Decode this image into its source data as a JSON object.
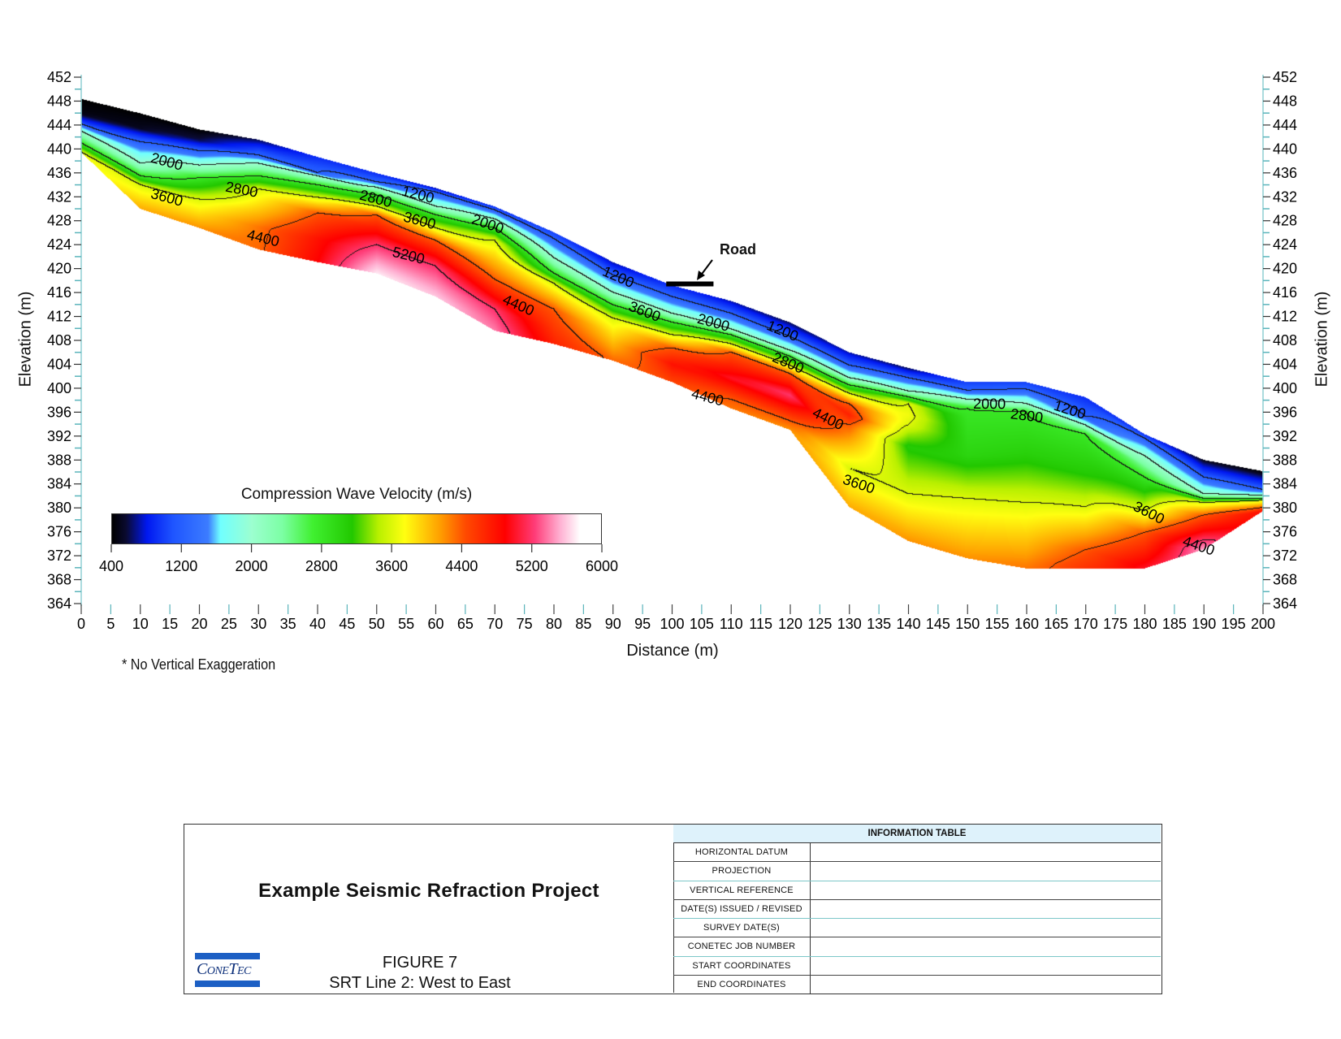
{
  "chart_data": {
    "type": "heatmap",
    "title": "",
    "xlabel": "Distance (m)",
    "ylabel": "Elevation (m)",
    "ylabel_right": "Elevation (m)",
    "xlim": [
      0,
      200
    ],
    "ylim": [
      364,
      452
    ],
    "x_ticks": [
      0,
      5,
      10,
      15,
      20,
      25,
      30,
      35,
      40,
      45,
      50,
      55,
      60,
      65,
      70,
      75,
      80,
      85,
      90,
      95,
      100,
      105,
      110,
      115,
      120,
      125,
      130,
      135,
      140,
      145,
      150,
      155,
      160,
      165,
      170,
      175,
      180,
      185,
      190,
      195,
      200
    ],
    "y_ticks": [
      452,
      448,
      444,
      440,
      436,
      432,
      428,
      424,
      420,
      416,
      412,
      408,
      404,
      400,
      396,
      392,
      388,
      384,
      380,
      376,
      372,
      368,
      364
    ],
    "note": "* No Vertical Exaggeration",
    "colorbar": {
      "title": "Compression Wave Velocity (m/s)",
      "range": [
        400,
        6000
      ],
      "ticks": [
        400,
        1200,
        2000,
        2800,
        3600,
        4400,
        5200,
        6000
      ],
      "stops": [
        [
          400,
          "#000000"
        ],
        [
          560,
          "#0a0a30"
        ],
        [
          800,
          "#0018f0"
        ],
        [
          1100,
          "#1f55ff"
        ],
        [
          1500,
          "#3c7cff"
        ],
        [
          1640,
          "#70ffff"
        ],
        [
          2000,
          "#9cffd0"
        ],
        [
          2350,
          "#7cffa4"
        ],
        [
          2700,
          "#40f030"
        ],
        [
          3150,
          "#22c800"
        ],
        [
          3450,
          "#b8f000"
        ],
        [
          3750,
          "#ffff10"
        ],
        [
          4150,
          "#ffa000"
        ],
        [
          4450,
          "#ff4a00"
        ],
        [
          4900,
          "#ff0000"
        ],
        [
          5240,
          "#ff3c78"
        ],
        [
          5530,
          "#ffb0d2"
        ],
        [
          5760,
          "#ffffff"
        ],
        [
          6000,
          "#ffffff"
        ]
      ]
    },
    "contour_levels": [
      1200,
      2000,
      2800,
      3600,
      4400,
      5200
    ],
    "columns": [
      {
        "d": 0,
        "profile": [
          [
            448.4,
            400
          ],
          [
            446,
            450
          ],
          [
            444.5,
            1000
          ],
          [
            443,
            2000
          ],
          [
            441,
            2800
          ],
          [
            439.5,
            3600
          ],
          [
            439.4,
            3700
          ]
        ]
      },
      {
        "d": 10,
        "profile": [
          [
            446,
            400
          ],
          [
            443.5,
            500
          ],
          [
            442,
            1000
          ],
          [
            440,
            1500
          ],
          [
            437.6,
            2000
          ],
          [
            435.5,
            2800
          ],
          [
            434,
            3600
          ],
          [
            430,
            4100
          ]
        ]
      },
      {
        "d": 20,
        "profile": [
          [
            443.3,
            400
          ],
          [
            441.5,
            600
          ],
          [
            440,
            1100
          ],
          [
            437.3,
            2000
          ],
          [
            435.2,
            2800
          ],
          [
            431.6,
            3600
          ],
          [
            426.8,
            4200
          ]
        ]
      },
      {
        "d": 30,
        "profile": [
          [
            441.6,
            600
          ],
          [
            440,
            1000
          ],
          [
            439,
            1200
          ],
          [
            437.6,
            2000
          ],
          [
            435.5,
            2800
          ],
          [
            433.3,
            3600
          ],
          [
            427,
            4300
          ],
          [
            423.2,
            4350
          ]
        ]
      },
      {
        "d": 40,
        "profile": [
          [
            438.7,
            900
          ],
          [
            436,
            1200
          ],
          [
            435.5,
            2000
          ],
          [
            434,
            2800
          ],
          [
            431.9,
            3600
          ],
          [
            429.3,
            4400
          ],
          [
            425,
            4800
          ],
          [
            421.1,
            4900
          ]
        ]
      },
      {
        "d": 50,
        "profile": [
          [
            436,
            900
          ],
          [
            434.5,
            1200
          ],
          [
            433.6,
            2000
          ],
          [
            432.3,
            2800
          ],
          [
            430.4,
            3600
          ],
          [
            429,
            4400
          ],
          [
            424,
            5200
          ],
          [
            419.2,
            5700
          ]
        ]
      },
      {
        "d": 60,
        "profile": [
          [
            433.5,
            700
          ],
          [
            432.8,
            1200
          ],
          [
            430.4,
            2000
          ],
          [
            429,
            2800
          ],
          [
            426.8,
            3600
          ],
          [
            424.7,
            4400
          ],
          [
            420.4,
            5200
          ],
          [
            415.3,
            5600
          ]
        ]
      },
      {
        "d": 70,
        "profile": [
          [
            430.4,
            900
          ],
          [
            429.8,
            1200
          ],
          [
            428.3,
            2000
          ],
          [
            426.8,
            2800
          ],
          [
            424.7,
            3600
          ],
          [
            418.2,
            4400
          ],
          [
            413.2,
            5200
          ],
          [
            409.6,
            5400
          ]
        ]
      },
      {
        "d": 80,
        "profile": [
          [
            426.1,
            1000
          ],
          [
            425,
            1200
          ],
          [
            421.8,
            2000
          ],
          [
            419.2,
            2800
          ],
          [
            417.5,
            3600
          ],
          [
            413.2,
            4400
          ],
          [
            407.4,
            4700
          ]
        ]
      },
      {
        "d": 90,
        "profile": [
          [
            421.1,
            700
          ],
          [
            418.9,
            1200
          ],
          [
            416,
            2000
          ],
          [
            413.9,
            2800
          ],
          [
            411.7,
            3600
          ],
          [
            404.6,
            4350
          ]
        ]
      },
      {
        "d": 100,
        "profile": [
          [
            417.2,
            900
          ],
          [
            415.3,
            1200
          ],
          [
            412.5,
            2000
          ],
          [
            411,
            2800
          ],
          [
            408.9,
            3600
          ],
          [
            406.7,
            4400
          ],
          [
            404,
            4800
          ],
          [
            401,
            4500
          ]
        ]
      },
      {
        "d": 110,
        "profile": [
          [
            414.6,
            700
          ],
          [
            412.5,
            1200
          ],
          [
            409.9,
            2000
          ],
          [
            408.9,
            2800
          ],
          [
            407.4,
            3600
          ],
          [
            406,
            4400
          ],
          [
            401.7,
            5000
          ],
          [
            398.1,
            4400
          ],
          [
            396.6,
            4300
          ]
        ]
      },
      {
        "d": 120,
        "profile": [
          [
            411,
            600
          ],
          [
            408.6,
            1200
          ],
          [
            406.3,
            2000
          ],
          [
            405.3,
            2800
          ],
          [
            403.8,
            3600
          ],
          [
            402.4,
            4400
          ],
          [
            398.8,
            5200
          ],
          [
            394.5,
            4400
          ],
          [
            393,
            4200
          ]
        ]
      },
      {
        "d": 130,
        "profile": [
          [
            406,
            700
          ],
          [
            403.8,
            1200
          ],
          [
            401.7,
            2000
          ],
          [
            400.5,
            2800
          ],
          [
            399.1,
            3600
          ],
          [
            397.4,
            4400
          ],
          [
            395.5,
            4700
          ],
          [
            393.8,
            4400
          ],
          [
            386.6,
            3600
          ],
          [
            380.1,
            4100
          ]
        ]
      },
      {
        "d": 140,
        "profile": [
          [
            403.4,
            600
          ],
          [
            401.7,
            1200
          ],
          [
            399.5,
            2000
          ],
          [
            398.5,
            2800
          ],
          [
            397.4,
            3600
          ],
          [
            395.5,
            3700
          ],
          [
            393.8,
            3600
          ],
          [
            390.2,
            3100
          ],
          [
            382.3,
            3600
          ],
          [
            374.4,
            4200
          ]
        ]
      },
      {
        "d": 150,
        "profile": [
          [
            401,
            1000
          ],
          [
            399.6,
            1200
          ],
          [
            398.1,
            2000
          ],
          [
            396.6,
            2800
          ],
          [
            388.7,
            3000
          ],
          [
            381.5,
            3600
          ],
          [
            371.5,
            4200
          ]
        ]
      },
      {
        "d": 160,
        "profile": [
          [
            401,
            1000
          ],
          [
            399.8,
            1200
          ],
          [
            397.4,
            2000
          ],
          [
            396,
            2800
          ],
          [
            389,
            3050
          ],
          [
            380.8,
            3600
          ],
          [
            369.8,
            4300
          ]
        ]
      },
      {
        "d": 170,
        "profile": [
          [
            398.5,
            900
          ],
          [
            395.2,
            1200
          ],
          [
            393.8,
            2000
          ],
          [
            392.3,
            2800
          ],
          [
            386,
            3100
          ],
          [
            380.1,
            3600
          ],
          [
            372.9,
            4400
          ],
          [
            369.8,
            4600
          ]
        ]
      },
      {
        "d": 180,
        "profile": [
          [
            392.3,
            900
          ],
          [
            391.6,
            1200
          ],
          [
            388.7,
            2000
          ],
          [
            385.1,
            2800
          ],
          [
            379.4,
            3600
          ],
          [
            375.8,
            4400
          ],
          [
            369.8,
            5000
          ]
        ]
      },
      {
        "d": 190,
        "profile": [
          [
            388,
            500
          ],
          [
            385.1,
            1200
          ],
          [
            382.3,
            2000
          ],
          [
            381.5,
            2800
          ],
          [
            380.8,
            3600
          ],
          [
            378.7,
            4400
          ],
          [
            373,
            5500
          ]
        ]
      },
      {
        "d": 200,
        "profile": [
          [
            386.1,
            400
          ],
          [
            383,
            1200
          ],
          [
            382,
            2000
          ],
          [
            381.5,
            2800
          ],
          [
            381.2,
            3600
          ],
          [
            380,
            4400
          ],
          [
            379.4,
            4800
          ]
        ]
      }
    ],
    "contour_labels": [
      {
        "text": "2000",
        "d": 14.5,
        "elev": 437.9
      },
      {
        "text": "2800",
        "d": 14.5,
        "elev": 435.6
      },
      {
        "text": "3600",
        "d": 14.5,
        "elev": 431.9
      },
      {
        "text": "4400",
        "d": 30.8,
        "elev": 425.1
      },
      {
        "text": "5200",
        "d": 55.4,
        "elev": 422.2
      },
      {
        "text": "1200",
        "d": 57,
        "elev": 432.4
      },
      {
        "text": "2000",
        "d": 62.5,
        "elev": 429.7
      },
      {
        "text": "2800",
        "d": 62.5,
        "elev": 428.4
      },
      {
        "text": "3600",
        "d": 63.6,
        "elev": 426.4
      },
      {
        "text": "1200",
        "d": 90.9,
        "elev": 418.6
      },
      {
        "text": "4400",
        "d": 74,
        "elev": 413.9
      },
      {
        "text": "2000",
        "d": 107,
        "elev": 411
      },
      {
        "text": "2800",
        "d": 107,
        "elev": 409.6
      },
      {
        "text": "3600",
        "d": 108,
        "elev": 407.9
      },
      {
        "text": "1200",
        "d": 118.7,
        "elev": 409.6
      },
      {
        "text": "4400",
        "d": 106,
        "elev": 398.5
      },
      {
        "text": "4400",
        "d": 126.4,
        "elev": 394.9
      },
      {
        "text": "2000",
        "d": 153.7,
        "elev": 397.4
      },
      {
        "text": "2800",
        "d": 153.7,
        "elev": 396.2
      },
      {
        "text": "1200",
        "d": 167.3,
        "elev": 396.4
      },
      {
        "text": "3600",
        "d": 131.6,
        "elev": 384
      },
      {
        "text": "3600",
        "d": 180.7,
        "elev": 379.2
      },
      {
        "text": "4400",
        "d": 182.8,
        "elev": 375.8
      }
    ],
    "annotation": {
      "text": "Road",
      "d_start": 99,
      "d_end": 107,
      "elev": 417.3
    }
  },
  "title_block": {
    "project": "Example Seismic Refraction Project",
    "figure": "FIGURE 7",
    "subtitle": "SRT Line 2: West to East",
    "logo_text": "ConeTec",
    "info_table": {
      "header": "INFORMATION TABLE",
      "rows": [
        {
          "label": "HORIZONTAL DATUM",
          "value": ""
        },
        {
          "label": "PROJECTION",
          "value": ""
        },
        {
          "label": "VERTICAL REFERENCE",
          "value": ""
        },
        {
          "label": "DATE(S) ISSUED / REVISED",
          "value": ""
        },
        {
          "label": "SURVEY DATE(S)",
          "value": ""
        },
        {
          "label": "CONETEC JOB NUMBER",
          "value": ""
        },
        {
          "label": "START COORDINATES",
          "value": ""
        },
        {
          "label": "END COORDINATES",
          "value": ""
        }
      ]
    }
  }
}
